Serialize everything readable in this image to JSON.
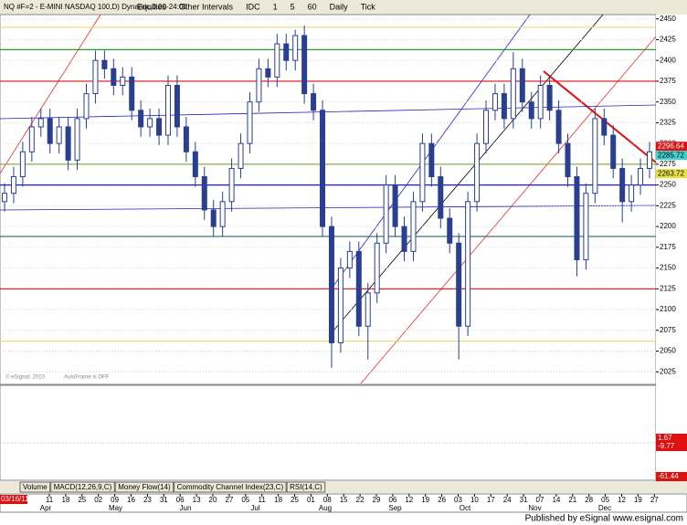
{
  "chart_data": {
    "type": "candlestick",
    "title": "NQ #F=2 - E-MINI NASDAQ 100,D) Dynamic,0:00-24:00",
    "toolbar": [
      "Equities",
      "Other Intervals",
      "IDC",
      "1",
      "5",
      "60",
      "Daily",
      "Tick"
    ],
    "tabs": [
      "Volume",
      "MACD(12,26,9,C)",
      "Money Flow(14)",
      "Commodity Channel Index(23,C)",
      "RSI(14,C)"
    ],
    "watermark": "© eSignal, 2010",
    "autoframe": "AutoFrame is OFF",
    "start_date": "03/16/11",
    "footer": "Published by eSignal www.esignal.com",
    "ylim": [
      2011,
      2453
    ],
    "yticks": [
      2025,
      2050,
      2075,
      2100,
      2125,
      2150,
      2175,
      2200,
      2225,
      2250,
      2275,
      2300,
      2325,
      2350,
      2375,
      2400,
      2425,
      2450
    ],
    "candle_color": "#2a3f8f",
    "candles": [
      [
        2230,
        2252,
        2218,
        2240
      ],
      [
        2240,
        2272,
        2228,
        2260
      ],
      [
        2260,
        2302,
        2248,
        2290
      ],
      [
        2290,
        2332,
        2278,
        2320
      ],
      [
        2320,
        2342,
        2308,
        2330
      ],
      [
        2330,
        2342,
        2288,
        2300
      ],
      [
        2300,
        2332,
        2288,
        2320
      ],
      [
        2320,
        2332,
        2268,
        2280
      ],
      [
        2280,
        2342,
        2268,
        2330
      ],
      [
        2330,
        2372,
        2318,
        2360
      ],
      [
        2360,
        2412,
        2348,
        2400
      ],
      [
        2400,
        2412,
        2378,
        2390
      ],
      [
        2390,
        2402,
        2358,
        2370
      ],
      [
        2370,
        2392,
        2358,
        2380
      ],
      [
        2380,
        2392,
        2328,
        2340
      ],
      [
        2340,
        2352,
        2308,
        2320
      ],
      [
        2320,
        2342,
        2308,
        2330
      ],
      [
        2330,
        2342,
        2298,
        2310
      ],
      [
        2310,
        2382,
        2298,
        2370
      ],
      [
        2370,
        2382,
        2308,
        2320
      ],
      [
        2320,
        2332,
        2278,
        2290
      ],
      [
        2290,
        2302,
        2248,
        2260
      ],
      [
        2260,
        2272,
        2208,
        2220
      ],
      [
        2220,
        2232,
        2188,
        2200
      ],
      [
        2200,
        2242,
        2188,
        2230
      ],
      [
        2230,
        2282,
        2218,
        2270
      ],
      [
        2270,
        2312,
        2258,
        2300
      ],
      [
        2300,
        2362,
        2288,
        2350
      ],
      [
        2350,
        2402,
        2338,
        2390
      ],
      [
        2390,
        2402,
        2368,
        2380
      ],
      [
        2380,
        2432,
        2368,
        2420
      ],
      [
        2420,
        2432,
        2388,
        2400
      ],
      [
        2400,
        2437,
        2388,
        2430
      ],
      [
        2430,
        2442,
        2348,
        2360
      ],
      [
        2360,
        2372,
        2328,
        2340
      ],
      [
        2340,
        2352,
        2188,
        2200
      ],
      [
        2200,
        2212,
        2030,
        2060
      ],
      [
        2060,
        2162,
        2048,
        2150
      ],
      [
        2150,
        2182,
        2138,
        2170
      ],
      [
        2170,
        2182,
        2068,
        2080
      ],
      [
        2080,
        2132,
        2040,
        2120
      ],
      [
        2120,
        2192,
        2108,
        2180
      ],
      [
        2180,
        2262,
        2168,
        2250
      ],
      [
        2250,
        2262,
        2188,
        2200
      ],
      [
        2200,
        2212,
        2158,
        2170
      ],
      [
        2170,
        2242,
        2158,
        2230
      ],
      [
        2230,
        2312,
        2218,
        2300
      ],
      [
        2300,
        2312,
        2248,
        2260
      ],
      [
        2260,
        2272,
        2198,
        2210
      ],
      [
        2210,
        2222,
        2168,
        2180
      ],
      [
        2180,
        2192,
        2040,
        2080
      ],
      [
        2080,
        2242,
        2068,
        2230
      ],
      [
        2230,
        2312,
        2218,
        2300
      ],
      [
        2300,
        2352,
        2288,
        2340
      ],
      [
        2340,
        2372,
        2328,
        2360
      ],
      [
        2360,
        2372,
        2318,
        2330
      ],
      [
        2330,
        2410,
        2318,
        2390
      ],
      [
        2390,
        2402,
        2338,
        2350
      ],
      [
        2350,
        2362,
        2318,
        2330
      ],
      [
        2330,
        2382,
        2318,
        2370
      ],
      [
        2370,
        2382,
        2328,
        2340
      ],
      [
        2340,
        2352,
        2288,
        2300
      ],
      [
        2300,
        2312,
        2248,
        2260
      ],
      [
        2260,
        2272,
        2140,
        2160
      ],
      [
        2160,
        2252,
        2148,
        2240
      ],
      [
        2240,
        2342,
        2228,
        2330
      ],
      [
        2330,
        2342,
        2298,
        2310
      ],
      [
        2310,
        2322,
        2258,
        2270
      ],
      [
        2270,
        2282,
        2205,
        2230
      ],
      [
        2230,
        2262,
        2218,
        2250
      ],
      [
        2250,
        2282,
        2238,
        2270
      ],
      [
        2270,
        2302,
        2258,
        2290
      ]
    ],
    "levels": [
      {
        "value": 2440,
        "color": "#e8e070"
      },
      {
        "value": 2413,
        "color": "#2a9a2a"
      },
      {
        "value": 2375,
        "color": "#e01010"
      },
      {
        "value": 2275,
        "color": "#8ab040"
      },
      {
        "value": 2250,
        "color": "#2020c0"
      },
      {
        "value": 2188,
        "color": "#3a7a6a"
      },
      {
        "value": 2125,
        "color": "#e01010"
      },
      {
        "value": 2062,
        "color": "#e8e070"
      }
    ],
    "price_markers": [
      {
        "value": 2296.64,
        "color": "#e01010"
      },
      {
        "value": 2285.72,
        "color": "#40d0d0"
      },
      {
        "value": 2263.72,
        "color": "#e8e040"
      }
    ],
    "macd_labels": [
      "1.67",
      "-9.77",
      "-61.44"
    ],
    "day_labels": [
      "11",
      "18",
      "25",
      "02",
      "09",
      "16",
      "23",
      "31",
      "06",
      "13",
      "20",
      "27",
      "05",
      "11",
      "18",
      "25",
      "01",
      "08",
      "15",
      "22",
      "29",
      "06",
      "12",
      "19",
      "26",
      "03",
      "10",
      "17",
      "24",
      "31",
      "07",
      "14",
      "21",
      "28",
      "05",
      "12",
      "19",
      "27"
    ],
    "month_labels": [
      "Apr",
      "May",
      "Jun",
      "Jul",
      "Aug",
      "Sep",
      "Oct",
      "Nov",
      "Dec"
    ]
  }
}
